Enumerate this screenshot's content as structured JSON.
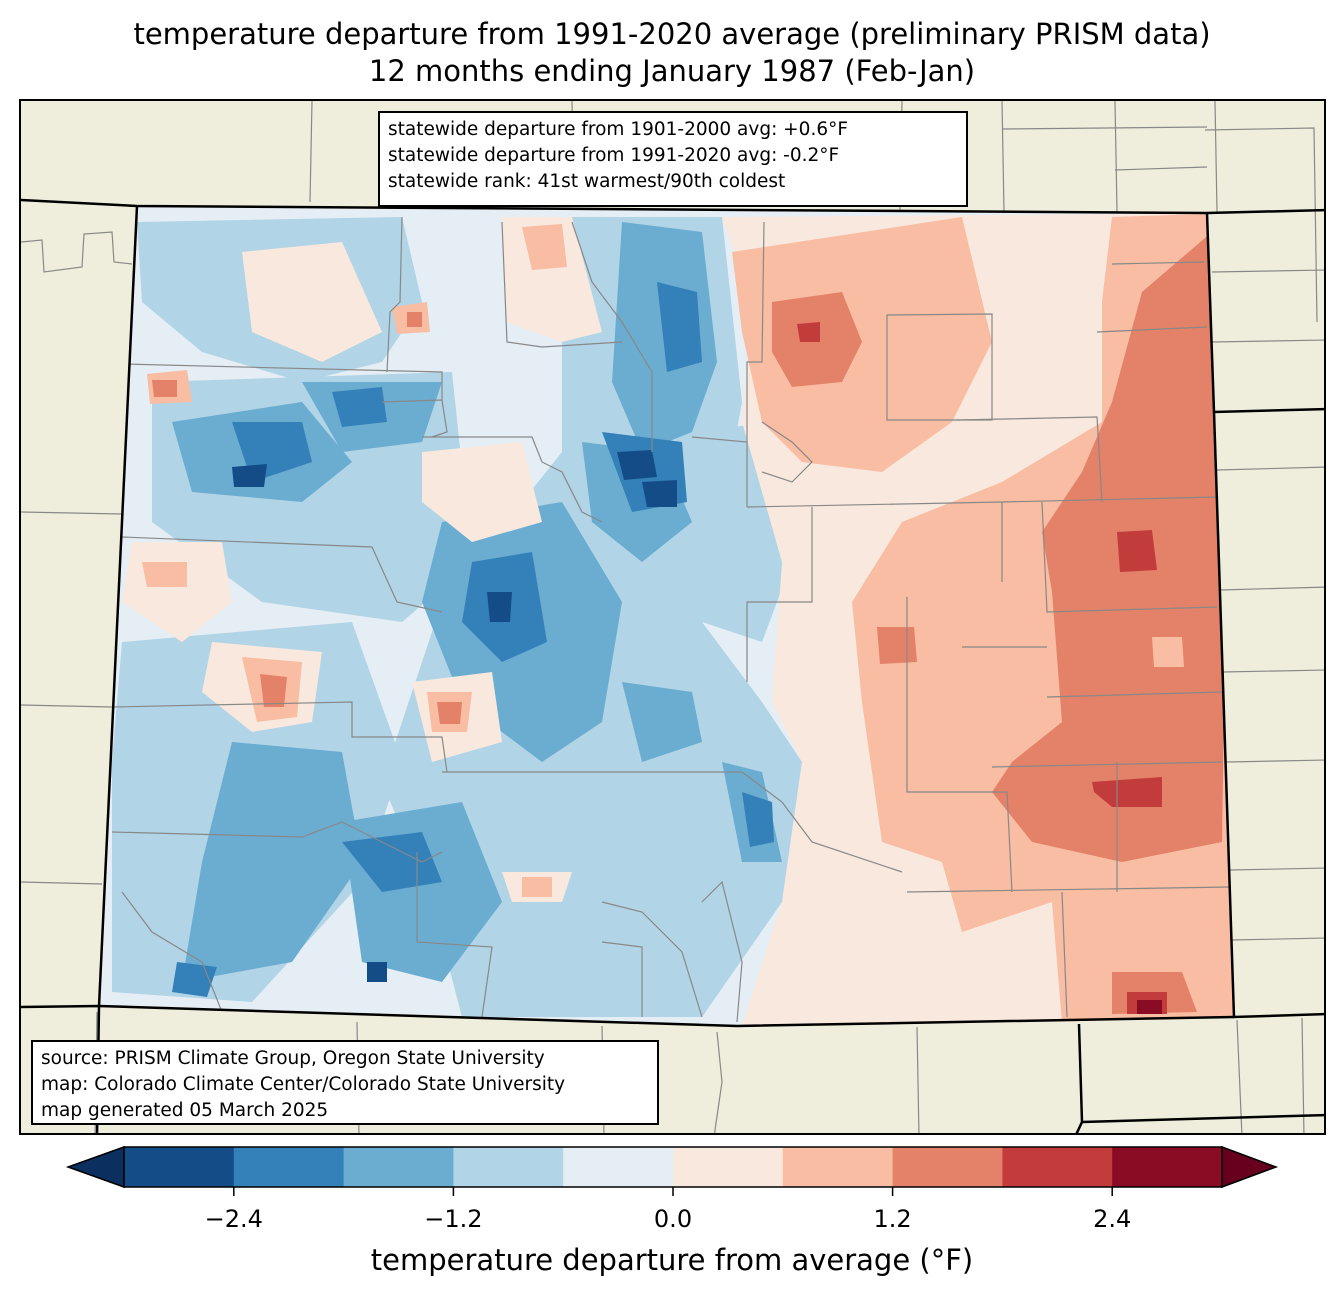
{
  "title": {
    "line1": "temperature departure from 1991-2020 average (preliminary PRISM data)",
    "line2": "12 months ending January 1987 (Feb-Jan)"
  },
  "stats_box": {
    "lines": [
      "statewide departure from 1901-2000 avg: +0.6°F",
      "statewide departure from 1991-2020 avg: -0.2°F",
      "statewide rank: 41st warmest/90th coldest"
    ]
  },
  "credits_box": {
    "lines": [
      "source: PRISM Climate Group, Oregon State University",
      "map: Colorado Climate Center/Colorado State University",
      "map generated 05 March 2025"
    ]
  },
  "colorbar": {
    "label": "temperature departure from average (°F)",
    "levels": [
      -3.0,
      -2.4,
      -1.8,
      -1.2,
      -0.6,
      0.0,
      0.6,
      1.2,
      1.8,
      2.4,
      3.0
    ],
    "colors": [
      "#144c87",
      "#3480b9",
      "#6bacd1",
      "#b1d4e7",
      "#e5eef4",
      "#f9e8dd",
      "#f8bda2",
      "#e48169",
      "#c33c3c",
      "#8a0c24"
    ],
    "under_color": "#0b2f5e",
    "over_color": "#67001f",
    "ticks": [
      -2.4,
      -1.2,
      0.0,
      1.2,
      2.4
    ],
    "tick_labels": [
      "−2.4",
      "−1.2",
      "0.0",
      "1.2",
      "2.4"
    ],
    "extend": "both"
  },
  "map": {
    "land_color": "#efeddb",
    "region": "Colorado",
    "pattern": "cool (negative) departures across western mountains, warm (positive) departures across eastern plains",
    "max_warm_category": "above 2.4",
    "max_cool_category": "below -2.4"
  }
}
